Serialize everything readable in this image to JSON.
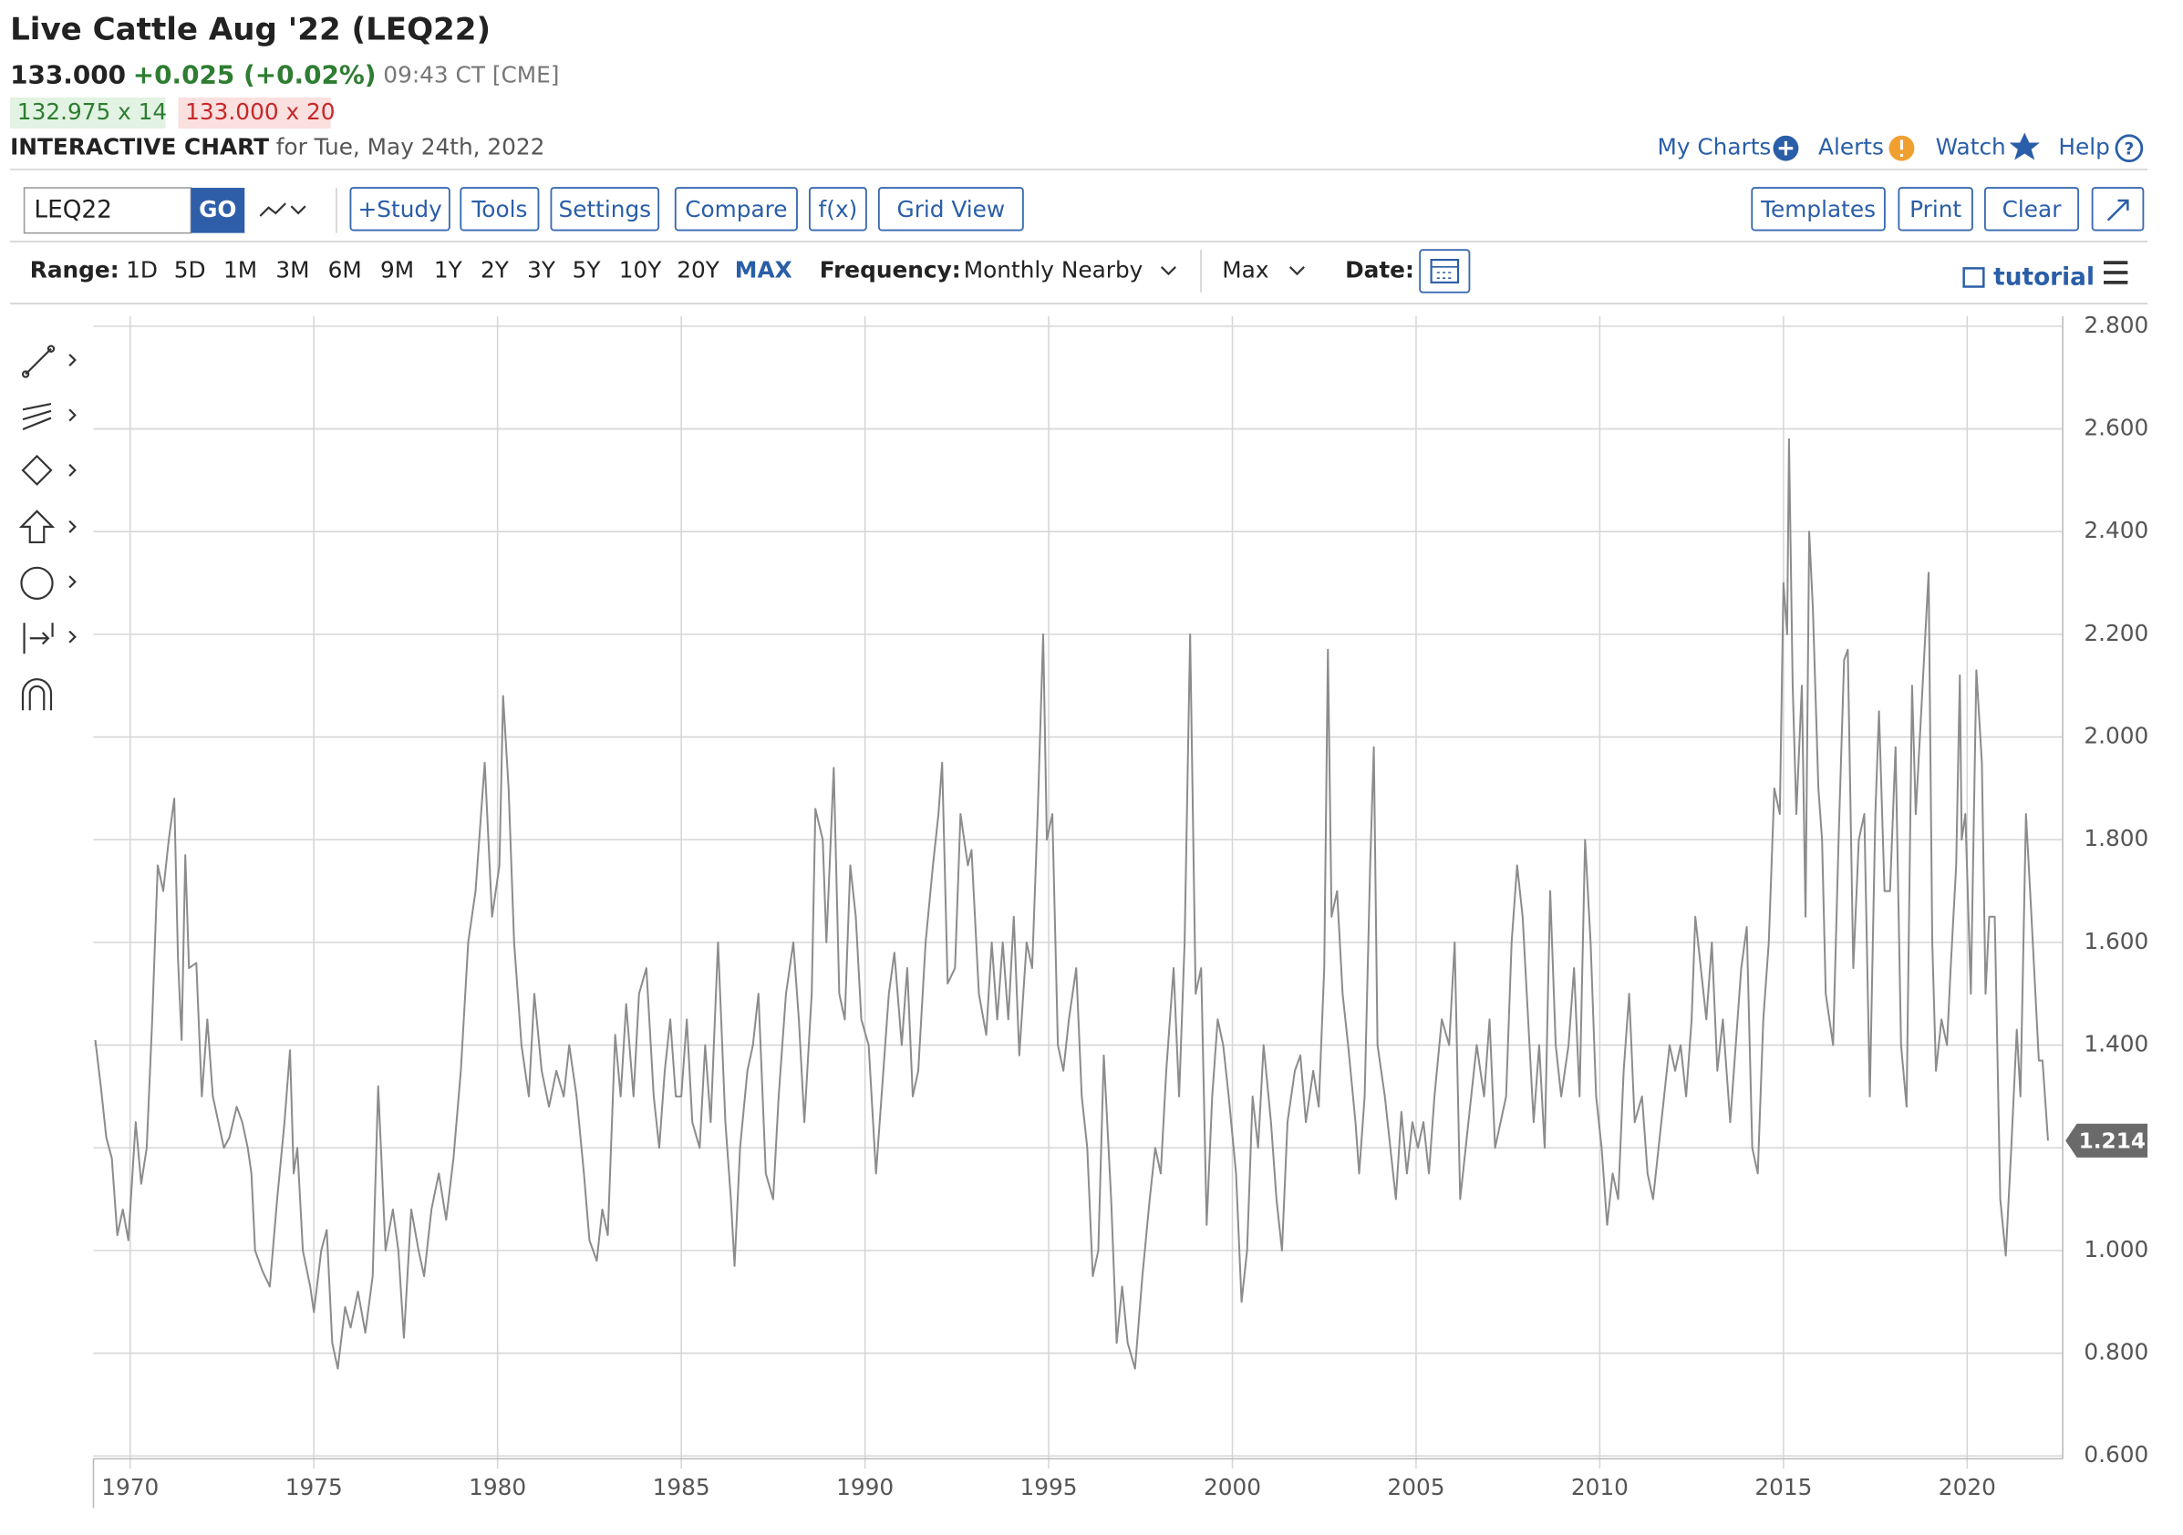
{
  "header": {
    "title": "Live Cattle Aug '22 (LEQ22)",
    "price": "133.000",
    "change": "+0.025 (+0.02%)",
    "time": "09:43 CT [CME]",
    "bid": "132.975 x 14",
    "ask": "133.000 x 20",
    "chart_label": "INTERACTIVE CHART",
    "chart_date": "for Tue, May 24th, 2022",
    "links": [
      "My Charts",
      "Alerts",
      "Watch",
      "Help"
    ]
  },
  "toolbar": {
    "symbol": "LEQ22",
    "go": "GO",
    "buttons": [
      "+Study",
      "Tools",
      "Settings",
      "Compare",
      "f(x)",
      "Grid View"
    ],
    "right_buttons": [
      "Templates",
      "Print",
      "Clear"
    ]
  },
  "range_bar": {
    "range_label": "Range:",
    "ranges": [
      "1D",
      "5D",
      "1M",
      "3M",
      "6M",
      "9M",
      "1Y",
      "2Y",
      "3Y",
      "5Y",
      "10Y",
      "20Y",
      "MAX"
    ],
    "selected": "MAX",
    "frequency_label": "Frequency:",
    "frequency": "Monthly Nearby",
    "aggregation": "Max",
    "date_label": "Date:",
    "tutorial": "tutorial"
  },
  "chart_data": {
    "type": "line",
    "color": "#8c8c8c",
    "grid": true,
    "xlim": [
      1969.0,
      2022.6
    ],
    "xticks": [
      1970,
      1975,
      1980,
      1985,
      1990,
      1995,
      2000,
      2005,
      2010,
      2015,
      2020
    ],
    "ylim": [
      0.6,
      2.8
    ],
    "yticks": [
      {
        "value": 0.6,
        "label": "0.600"
      },
      {
        "value": 0.8,
        "label": "0.800"
      },
      {
        "value": 1.0,
        "label": "1.000"
      },
      {
        "value": 1.2,
        "label": "1.200"
      },
      {
        "value": 1.4,
        "label": "1.400"
      },
      {
        "value": 1.6,
        "label": "1.600"
      },
      {
        "value": 1.8,
        "label": "1.800"
      },
      {
        "value": 2.0,
        "label": "2.000"
      },
      {
        "value": 2.2,
        "label": "2.200"
      },
      {
        "value": 2.4,
        "label": "2.400"
      },
      {
        "value": 2.6,
        "label": "2.600"
      },
      {
        "value": 2.8,
        "label": "2.800"
      }
    ],
    "last_label": "1.214",
    "x": [
      1969.05,
      1969.2,
      1969.35,
      1969.5,
      1969.65,
      1969.8,
      1969.95,
      1970.15,
      1970.3,
      1970.45,
      1970.6,
      1970.75,
      1970.9,
      1971.05,
      1971.2,
      1971.3,
      1971.4,
      1971.5,
      1971.6,
      1971.8,
      1971.95,
      1972.1,
      1972.25,
      1972.4,
      1972.55,
      1972.7,
      1972.9,
      1973.05,
      1973.2,
      1973.3,
      1973.4,
      1973.6,
      1973.8,
      1974.0,
      1974.2,
      1974.35,
      1974.45,
      1974.55,
      1974.7,
      1974.9,
      1975.0,
      1975.2,
      1975.35,
      1975.5,
      1975.65,
      1975.85,
      1976.0,
      1976.2,
      1976.4,
      1976.6,
      1976.75,
      1976.95,
      1977.15,
      1977.3,
      1977.45,
      1977.65,
      1977.85,
      1978.0,
      1978.2,
      1978.4,
      1978.6,
      1978.8,
      1979.0,
      1979.2,
      1979.4,
      1979.65,
      1979.85,
      1980.05,
      1980.15,
      1980.3,
      1980.45,
      1980.65,
      1980.85,
      1981.0,
      1981.2,
      1981.4,
      1981.6,
      1981.8,
      1981.95,
      1982.15,
      1982.35,
      1982.5,
      1982.7,
      1982.85,
      1983.0,
      1983.2,
      1983.35,
      1983.5,
      1983.7,
      1983.85,
      1984.05,
      1984.25,
      1984.4,
      1984.55,
      1984.7,
      1984.85,
      1985.0,
      1985.15,
      1985.3,
      1985.5,
      1985.65,
      1985.8,
      1986.0,
      1986.2,
      1986.35,
      1986.45,
      1986.6,
      1986.8,
      1986.95,
      1987.1,
      1987.3,
      1987.5,
      1987.65,
      1987.85,
      1988.05,
      1988.2,
      1988.35,
      1988.55,
      1988.65,
      1988.85,
      1988.95,
      1989.15,
      1989.3,
      1989.45,
      1989.6,
      1989.75,
      1989.9,
      1990.1,
      1990.3,
      1990.45,
      1990.65,
      1990.8,
      1991.0,
      1991.15,
      1991.3,
      1991.45,
      1991.65,
      1991.85,
      1992.0,
      1992.1,
      1992.25,
      1992.45,
      1992.6,
      1992.8,
      1992.9,
      1993.1,
      1993.3,
      1993.45,
      1993.6,
      1993.75,
      1993.9,
      1994.05,
      1994.2,
      1994.4,
      1994.55,
      1994.7,
      1994.85,
      1994.95,
      1995.1,
      1995.25,
      1995.4,
      1995.55,
      1995.75,
      1995.9,
      1996.05,
      1996.2,
      1996.35,
      1996.5,
      1996.7,
      1996.85,
      1997.0,
      1997.15,
      1997.35,
      1997.55,
      1997.75,
      1997.9,
      1998.05,
      1998.2,
      1998.4,
      1998.55,
      1998.7,
      1998.85,
      1999.0,
      1999.15,
      1999.3,
      1999.45,
      1999.6,
      1999.75,
      1999.9,
      2000.1,
      2000.25,
      2000.4,
      2000.55,
      2000.7,
      2000.85,
      2001.05,
      2001.2,
      2001.35,
      2001.5,
      2001.7,
      2001.85,
      2002.0,
      2002.2,
      2002.35,
      2002.5,
      2002.6,
      2002.7,
      2002.85,
      2003.0,
      2003.15,
      2003.35,
      2003.45,
      2003.6,
      2003.75,
      2003.85,
      2003.95,
      2004.15,
      2004.3,
      2004.45,
      2004.6,
      2004.75,
      2004.9,
      2005.05,
      2005.2,
      2005.35,
      2005.5,
      2005.7,
      2005.9,
      2006.05,
      2006.2,
      2006.35,
      2006.5,
      2006.65,
      2006.85,
      2007.0,
      2007.15,
      2007.3,
      2007.45,
      2007.6,
      2007.75,
      2007.9,
      2008.05,
      2008.2,
      2008.35,
      2008.5,
      2008.65,
      2008.8,
      2008.95,
      2009.15,
      2009.3,
      2009.45,
      2009.6,
      2009.75,
      2009.9,
      2010.05,
      2010.2,
      2010.35,
      2010.5,
      2010.65,
      2010.8,
      2010.95,
      2011.15,
      2011.3,
      2011.45,
      2011.6,
      2011.75,
      2011.9,
      2012.05,
      2012.2,
      2012.35,
      2012.5,
      2012.6,
      2012.75,
      2012.9,
      2013.05,
      2013.2,
      2013.35,
      2013.55,
      2013.7,
      2013.85,
      2014.0,
      2014.15,
      2014.3,
      2014.45,
      2014.6,
      2014.75,
      2014.9,
      2015.0,
      2015.1,
      2015.15,
      2015.25,
      2015.35,
      2015.5,
      2015.6,
      2015.7,
      2015.8,
      2015.95,
      2016.05,
      2016.15,
      2016.25,
      2016.35,
      2016.5,
      2016.65,
      2016.75,
      2016.9,
      2017.05,
      2017.2,
      2017.35,
      2017.5,
      2017.6,
      2017.75,
      2017.9,
      2018.05,
      2018.2,
      2018.35,
      2018.5,
      2018.6,
      2018.75,
      2018.95,
      2019.05,
      2019.15,
      2019.3,
      2019.45,
      2019.55,
      2019.7,
      2019.8,
      2019.85,
      2019.95,
      2020.1,
      2020.25,
      2020.4,
      2020.5,
      2020.6,
      2020.75,
      2020.9,
      2021.05,
      2021.2,
      2021.35,
      2021.45,
      2021.6,
      2021.75,
      2021.95,
      2022.05,
      2022.2
    ],
    "values": [
      1.41,
      1.32,
      1.22,
      1.18,
      1.03,
      1.08,
      1.02,
      1.25,
      1.13,
      1.2,
      1.45,
      1.75,
      1.7,
      1.8,
      1.88,
      1.57,
      1.41,
      1.77,
      1.55,
      1.56,
      1.3,
      1.45,
      1.3,
      1.25,
      1.2,
      1.22,
      1.28,
      1.25,
      1.2,
      1.15,
      1.0,
      0.96,
      0.93,
      1.1,
      1.25,
      1.39,
      1.15,
      1.2,
      1.0,
      0.93,
      0.88,
      1.0,
      1.04,
      0.82,
      0.77,
      0.89,
      0.85,
      0.92,
      0.84,
      0.95,
      1.32,
      1.0,
      1.08,
      1.0,
      0.83,
      1.08,
      1.0,
      0.95,
      1.08,
      1.15,
      1.06,
      1.18,
      1.35,
      1.6,
      1.7,
      1.95,
      1.65,
      1.75,
      2.08,
      1.9,
      1.6,
      1.4,
      1.3,
      1.5,
      1.35,
      1.28,
      1.35,
      1.3,
      1.4,
      1.3,
      1.15,
      1.02,
      0.98,
      1.08,
      1.03,
      1.42,
      1.3,
      1.48,
      1.3,
      1.5,
      1.55,
      1.3,
      1.2,
      1.35,
      1.45,
      1.3,
      1.3,
      1.45,
      1.25,
      1.2,
      1.4,
      1.25,
      1.6,
      1.25,
      1.1,
      0.97,
      1.2,
      1.35,
      1.4,
      1.5,
      1.15,
      1.1,
      1.3,
      1.5,
      1.6,
      1.45,
      1.25,
      1.5,
      1.86,
      1.8,
      1.6,
      1.94,
      1.5,
      1.45,
      1.75,
      1.65,
      1.45,
      1.4,
      1.15,
      1.3,
      1.5,
      1.58,
      1.4,
      1.55,
      1.3,
      1.35,
      1.6,
      1.75,
      1.85,
      1.95,
      1.52,
      1.55,
      1.85,
      1.75,
      1.78,
      1.5,
      1.42,
      1.6,
      1.45,
      1.6,
      1.45,
      1.65,
      1.38,
      1.6,
      1.55,
      1.85,
      2.2,
      1.8,
      1.85,
      1.4,
      1.35,
      1.45,
      1.55,
      1.3,
      1.2,
      0.95,
      1.0,
      1.38,
      1.1,
      0.82,
      0.93,
      0.82,
      0.77,
      0.95,
      1.1,
      1.2,
      1.15,
      1.35,
      1.55,
      1.3,
      1.6,
      2.2,
      1.5,
      1.55,
      1.05,
      1.3,
      1.45,
      1.4,
      1.3,
      1.15,
      0.9,
      1.0,
      1.3,
      1.2,
      1.4,
      1.25,
      1.1,
      1.0,
      1.25,
      1.35,
      1.38,
      1.25,
      1.35,
      1.28,
      1.55,
      2.17,
      1.65,
      1.7,
      1.5,
      1.4,
      1.25,
      1.15,
      1.3,
      1.75,
      1.98,
      1.4,
      1.3,
      1.2,
      1.1,
      1.27,
      1.15,
      1.25,
      1.2,
      1.25,
      1.15,
      1.3,
      1.45,
      1.4,
      1.6,
      1.1,
      1.2,
      1.3,
      1.4,
      1.3,
      1.45,
      1.2,
      1.25,
      1.3,
      1.6,
      1.75,
      1.65,
      1.45,
      1.25,
      1.4,
      1.2,
      1.7,
      1.4,
      1.3,
      1.4,
      1.55,
      1.3,
      1.8,
      1.6,
      1.3,
      1.2,
      1.05,
      1.15,
      1.1,
      1.35,
      1.5,
      1.25,
      1.3,
      1.15,
      1.1,
      1.2,
      1.3,
      1.4,
      1.35,
      1.4,
      1.3,
      1.45,
      1.65,
      1.55,
      1.45,
      1.6,
      1.35,
      1.45,
      1.25,
      1.4,
      1.55,
      1.63,
      1.2,
      1.15,
      1.45,
      1.6,
      1.9,
      1.85,
      2.3,
      2.2,
      2.58,
      2.1,
      1.85,
      2.1,
      1.65,
      2.4,
      2.25,
      1.9,
      1.8,
      1.5,
      1.45,
      1.4,
      1.8,
      2.15,
      2.17,
      1.55,
      1.8,
      1.85,
      1.3,
      1.85,
      2.05,
      1.7,
      1.7,
      1.98,
      1.4,
      1.28,
      2.1,
      1.85,
      2.05,
      2.32,
      1.6,
      1.35,
      1.45,
      1.4,
      1.55,
      1.75,
      2.12,
      1.8,
      1.85,
      1.5,
      2.13,
      1.95,
      1.5,
      1.65,
      1.65,
      1.1,
      0.99,
      1.2,
      1.43,
      1.3,
      1.85,
      1.65,
      1.37,
      1.37,
      1.214
    ]
  }
}
